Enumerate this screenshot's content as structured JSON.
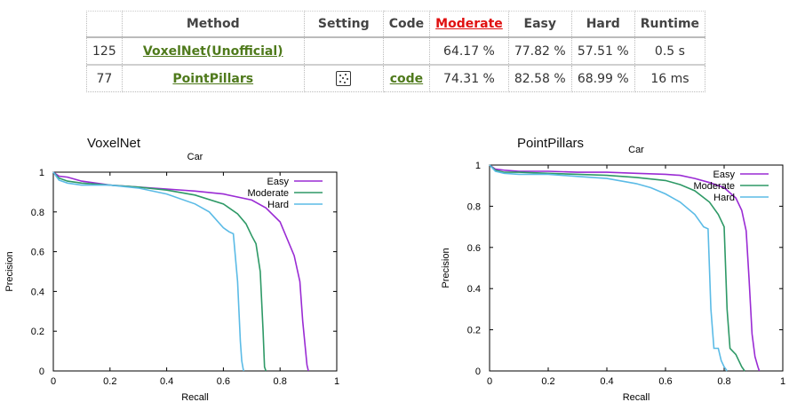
{
  "table": {
    "headers": [
      "",
      "Method",
      "Setting",
      "Code",
      "Moderate",
      "Easy",
      "Hard",
      "Runtime"
    ],
    "sorted_column": "Moderate",
    "rows": [
      {
        "rank": "125",
        "method": "VoxelNet(Unofficial)",
        "setting": "",
        "code": "",
        "moderate": "64.17 %",
        "easy": "77.82 %",
        "hard": "57.51 %",
        "runtime": "0.5 s"
      },
      {
        "rank": "77",
        "method": "PointPillars",
        "setting": "laser-points-icon",
        "code": "code",
        "moderate": "74.31 %",
        "easy": "82.58 %",
        "hard": "68.99 %",
        "runtime": "16 ms"
      }
    ]
  },
  "colors": {
    "easy": "#9a2bd4",
    "moderate": "#2e9966",
    "hard": "#5bbbe6",
    "link": "#4f7a1c",
    "sorted_header": "#e01010"
  },
  "chart_data": [
    {
      "type": "line",
      "caption": "VoxelNet",
      "title": "Car",
      "xlabel": "Recall",
      "ylabel": "Precision",
      "xlim": [
        0,
        1
      ],
      "ylim": [
        0,
        1
      ],
      "xticks": [
        "0",
        "0.2",
        "0.4",
        "0.6",
        "0.8",
        "1"
      ],
      "yticks": [
        "0",
        "0.2",
        "0.4",
        "0.6",
        "0.8",
        "1"
      ],
      "legend": "top-right",
      "series": [
        {
          "name": "Easy",
          "x": [
            0,
            0.02,
            0.05,
            0.1,
            0.2,
            0.3,
            0.4,
            0.5,
            0.6,
            0.7,
            0.75,
            0.8,
            0.85,
            0.87,
            0.88,
            0.895,
            0.9
          ],
          "y": [
            1.0,
            0.98,
            0.975,
            0.955,
            0.935,
            0.925,
            0.915,
            0.905,
            0.89,
            0.86,
            0.82,
            0.75,
            0.58,
            0.45,
            0.25,
            0.03,
            0
          ]
        },
        {
          "name": "Moderate",
          "x": [
            0,
            0.02,
            0.05,
            0.1,
            0.2,
            0.3,
            0.4,
            0.5,
            0.6,
            0.65,
            0.68,
            0.7,
            0.715,
            0.73,
            0.74,
            0.745,
            0.75
          ],
          "y": [
            1.0,
            0.97,
            0.955,
            0.945,
            0.935,
            0.925,
            0.91,
            0.885,
            0.84,
            0.79,
            0.74,
            0.68,
            0.64,
            0.5,
            0.2,
            0.02,
            0
          ]
        },
        {
          "name": "Hard",
          "x": [
            0,
            0.02,
            0.05,
            0.1,
            0.2,
            0.3,
            0.4,
            0.5,
            0.55,
            0.6,
            0.62,
            0.635,
            0.65,
            0.66,
            0.665,
            0.67,
            0.672
          ],
          "y": [
            1.0,
            0.96,
            0.945,
            0.935,
            0.935,
            0.92,
            0.89,
            0.84,
            0.8,
            0.72,
            0.7,
            0.69,
            0.45,
            0.15,
            0.05,
            0.01,
            0
          ]
        }
      ]
    },
    {
      "type": "line",
      "caption": "PointPillars",
      "title": "Car",
      "xlabel": "Recall",
      "ylabel": "Precision",
      "xlim": [
        0,
        1
      ],
      "ylim": [
        0,
        1
      ],
      "xticks": [
        "0",
        "0.2",
        "0.4",
        "0.6",
        "0.8",
        "1"
      ],
      "yticks": [
        "0",
        "0.2",
        "0.4",
        "0.6",
        "0.8",
        "1"
      ],
      "legend": "top-right",
      "series": [
        {
          "name": "Easy",
          "x": [
            0,
            0.02,
            0.05,
            0.1,
            0.2,
            0.3,
            0.4,
            0.5,
            0.6,
            0.65,
            0.7,
            0.75,
            0.8,
            0.84,
            0.86,
            0.875,
            0.885,
            0.895,
            0.905,
            0.915,
            0.92
          ],
          "y": [
            1.0,
            0.98,
            0.975,
            0.97,
            0.97,
            0.965,
            0.965,
            0.96,
            0.955,
            0.95,
            0.935,
            0.915,
            0.89,
            0.84,
            0.78,
            0.68,
            0.45,
            0.18,
            0.07,
            0.02,
            0
          ]
        },
        {
          "name": "Moderate",
          "x": [
            0,
            0.02,
            0.05,
            0.1,
            0.2,
            0.3,
            0.4,
            0.5,
            0.6,
            0.65,
            0.7,
            0.75,
            0.78,
            0.8,
            0.81,
            0.82,
            0.84,
            0.86,
            0.87
          ],
          "y": [
            1.0,
            0.975,
            0.965,
            0.965,
            0.96,
            0.955,
            0.95,
            0.94,
            0.925,
            0.905,
            0.875,
            0.82,
            0.76,
            0.7,
            0.3,
            0.11,
            0.08,
            0.02,
            0
          ]
        },
        {
          "name": "Hard",
          "x": [
            0,
            0.02,
            0.05,
            0.1,
            0.2,
            0.3,
            0.4,
            0.5,
            0.55,
            0.6,
            0.65,
            0.7,
            0.73,
            0.745,
            0.755,
            0.765,
            0.78,
            0.79,
            0.8,
            0.81
          ],
          "y": [
            1.0,
            0.97,
            0.96,
            0.955,
            0.955,
            0.945,
            0.935,
            0.91,
            0.89,
            0.86,
            0.82,
            0.76,
            0.7,
            0.69,
            0.3,
            0.11,
            0.11,
            0.05,
            0.02,
            0
          ]
        }
      ]
    }
  ]
}
